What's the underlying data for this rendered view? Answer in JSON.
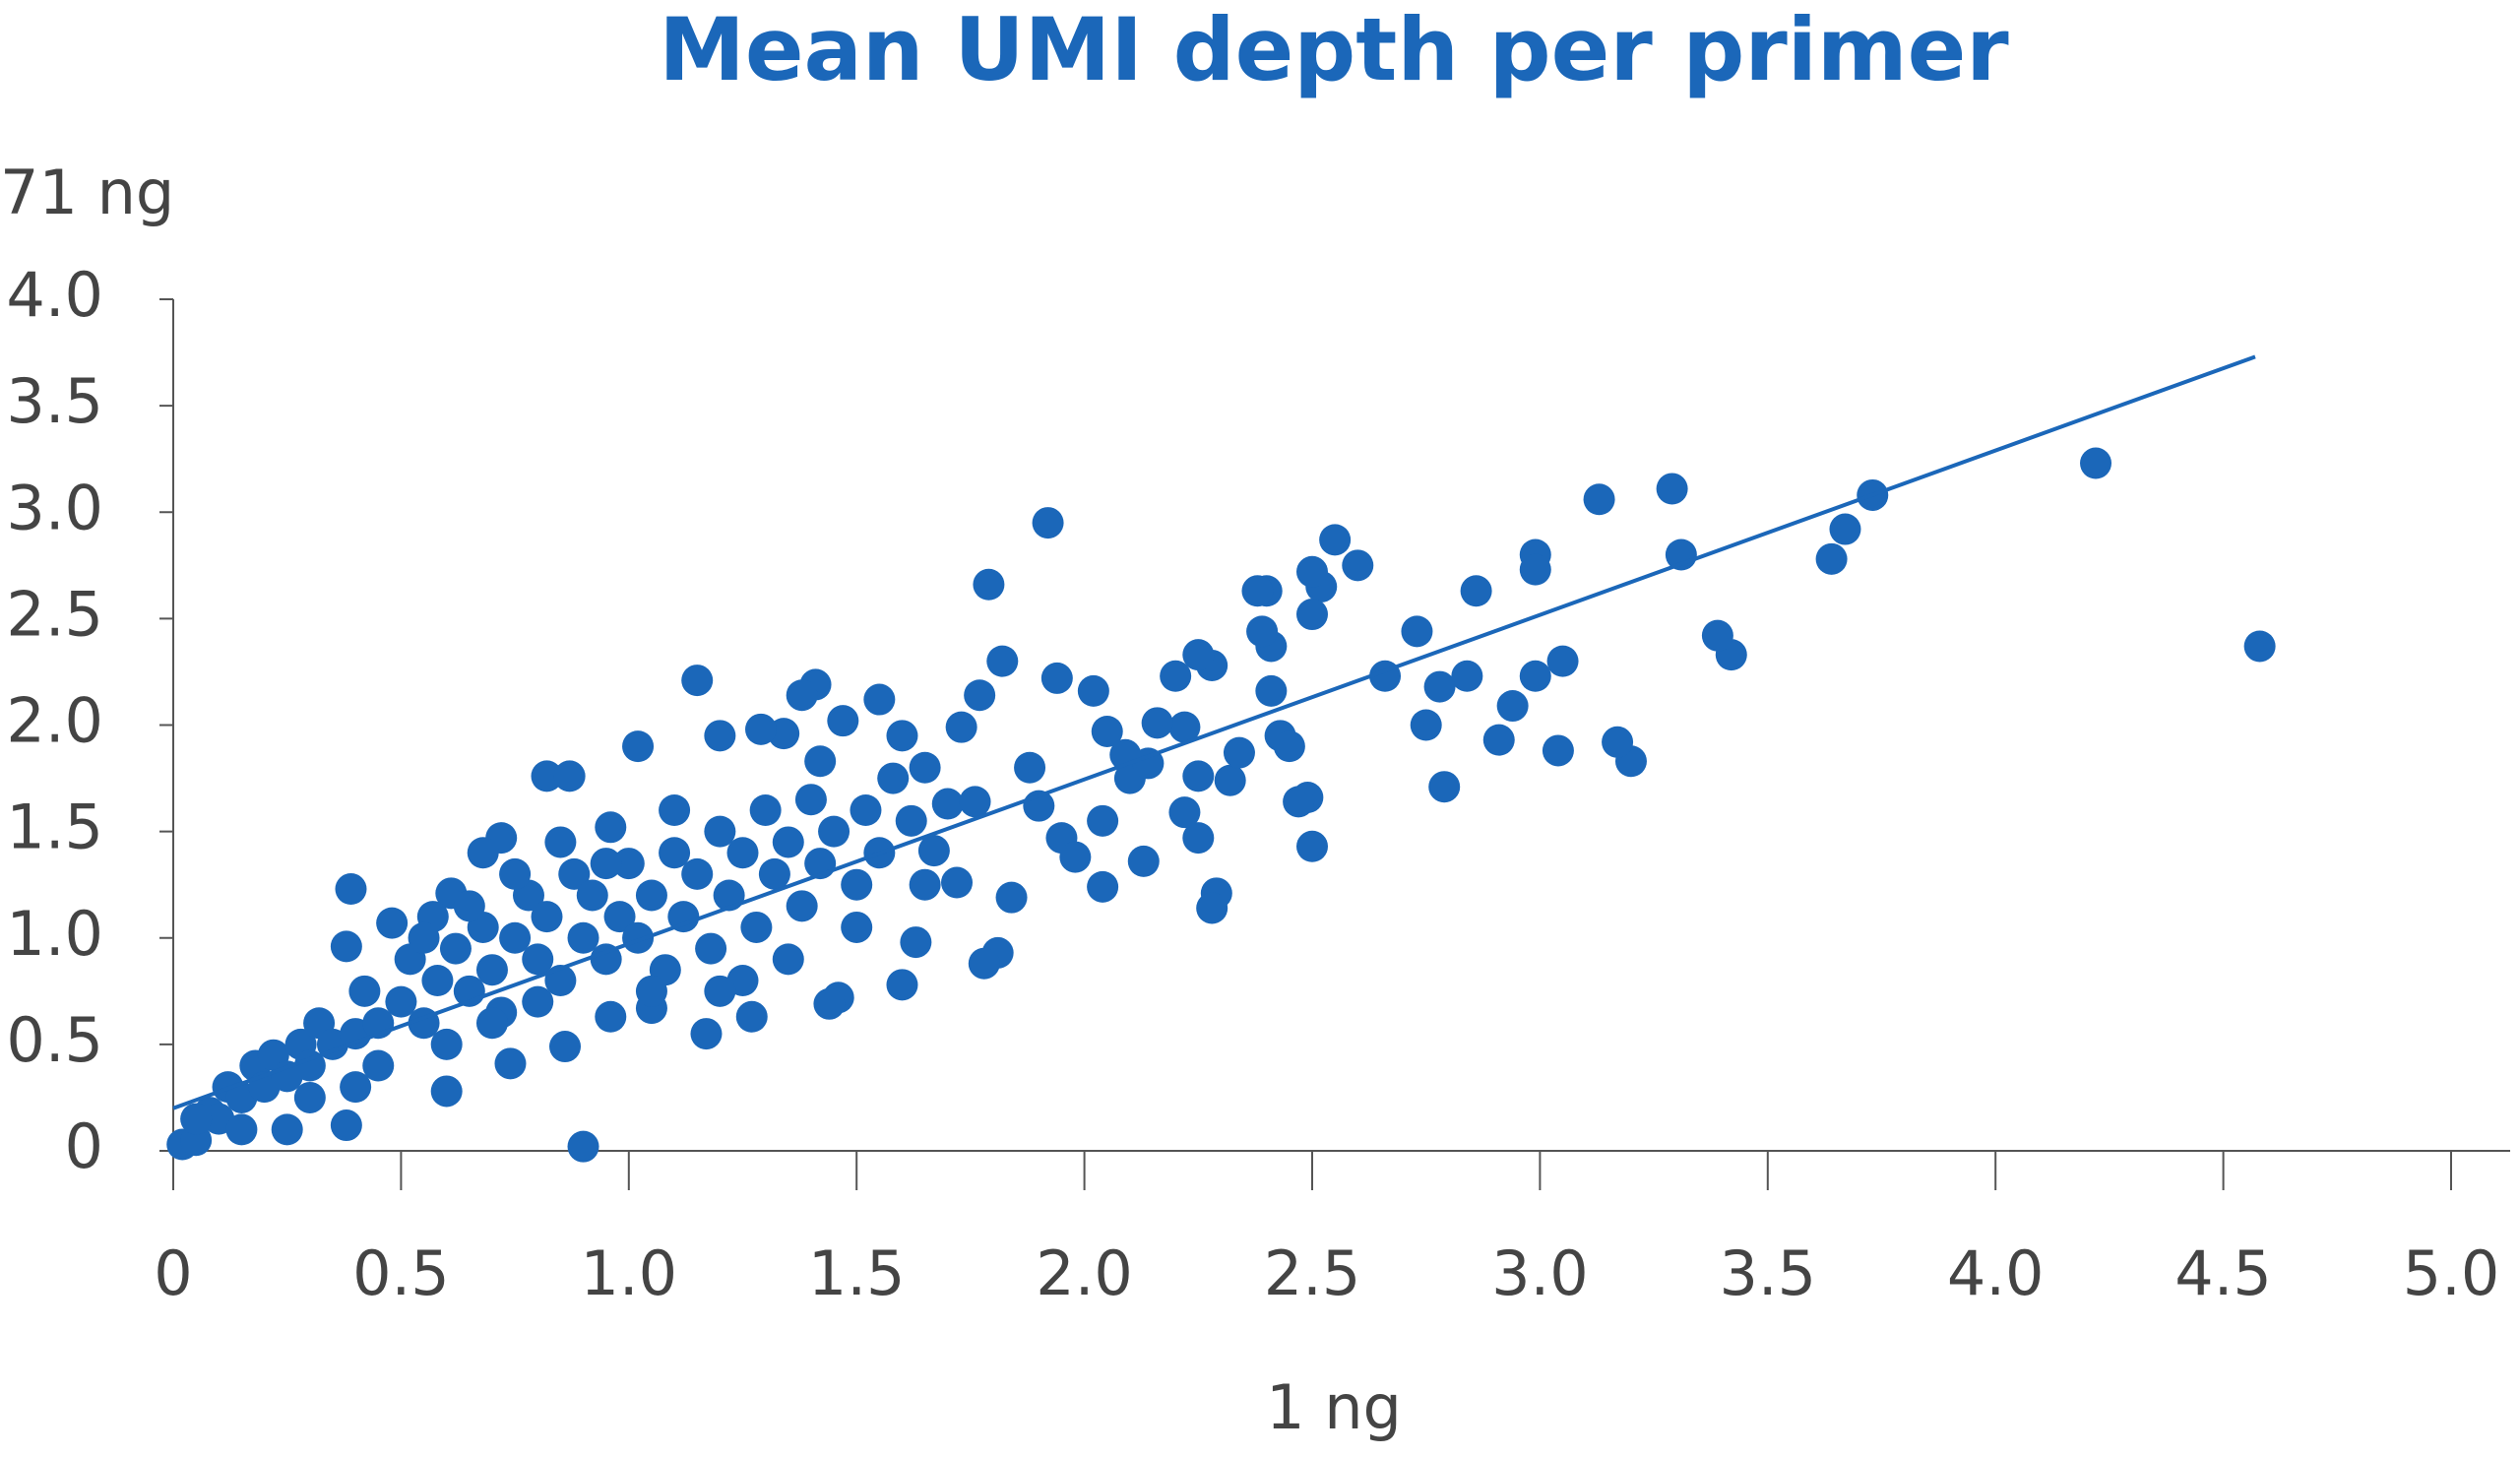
{
  "chart_data": {
    "type": "scatter",
    "title": "Mean UMI depth per primer",
    "x_label": "1 ng",
    "y_label": "71 ng",
    "color": "#1b67b9",
    "grid": false,
    "xlim": [
      0,
      5
    ],
    "xticks": [
      0,
      0.5,
      {
        "value": 1,
        "label": "1.0"
      },
      1.5,
      {
        "value": 2,
        "label": "2.0"
      },
      2.5,
      {
        "value": 3,
        "label": "3.0"
      },
      3.5,
      {
        "value": 4,
        "label": "4.0"
      },
      4.5,
      {
        "value": 5,
        "label": "5.0"
      }
    ],
    "ylim": [
      0,
      4
    ],
    "yticks": [
      0,
      0.5,
      {
        "value": 1,
        "label": "1.0"
      },
      1.5,
      {
        "value": 2,
        "label": "2.0"
      },
      2.5,
      {
        "value": 3,
        "label": "3.0"
      },
      3.5,
      {
        "value": 4,
        "label": "4.0"
      }
    ],
    "x": [
      4.58,
      4.22,
      3.73,
      3.67,
      3.64,
      3.42,
      3.39,
      3.31,
      3.29,
      3.13,
      3.2,
      3.17,
      3.04,
      3.05,
      2.99,
      2.99,
      2.99,
      2.94,
      2.91,
      2.86,
      2.84,
      2.79,
      2.78,
      2.75,
      2.73,
      2.66,
      2.6,
      2.55,
      2.52,
      2.5,
      2.5,
      2.5,
      2.49,
      2.47,
      2.43,
      2.45,
      2.41,
      2.41,
      2.4,
      2.38,
      2.39,
      2.32,
      2.34,
      2.29,
      2.28,
      2.28,
      2.25,
      2.25,
      2.25,
      2.22,
      2.22,
      2.2,
      2.13,
      2.09,
      2.05,
      2.04,
      2.04,
      2.02,
      1.92,
      1.94,
      1.82,
      1.84,
      1.81,
      1.78,
      1.79,
      1.77,
      1.73,
      1.65,
      1.6,
      1.63,
      1.55,
      1.46,
      1.44,
      1.34,
      1.41,
      1.27,
      1.17,
      1.15,
      1.02,
      0.9,
      0.86,
      0.39,
      0.38,
      0.38,
      0.25,
      0.6,
      0.74,
      0.96,
      1.05,
      0.82,
      0.87,
      0.72,
      0.61,
      0.68,
      0.48,
      0.57,
      0.96,
      1.2,
      1.29,
      1.38,
      1.42,
      1.47,
      1.6,
      1.7,
      1.76,
      1.88,
      1.9,
      1.95,
      1.98,
      2.1,
      2.16,
      2.14,
      1.67,
      1.72,
      0.02,
      0.05,
      0.08,
      0.1,
      0.12,
      0.15,
      0.18,
      0.2,
      0.22,
      0.25,
      0.28,
      0.3,
      0.32,
      0.35,
      0.4,
      0.42,
      0.45,
      0.5,
      0.52,
      0.55,
      0.58,
      0.62,
      0.65,
      0.68,
      0.7,
      0.72,
      0.75,
      0.78,
      0.8,
      0.82,
      0.85,
      0.88,
      0.9,
      0.92,
      0.95,
      0.98,
      1.0,
      1.02,
      1.05,
      1.08,
      1.1,
      1.12,
      1.15,
      1.18,
      1.2,
      1.22,
      1.25,
      1.28,
      1.3,
      1.32,
      1.35,
      1.38,
      1.4,
      1.42,
      1.45,
      1.5,
      1.52,
      1.55,
      1.58,
      1.62,
      1.65,
      1.5,
      1.35,
      1.25,
      0.3,
      0.45,
      0.6,
      0.7,
      0.55,
      0.65,
      0.75,
      0.85,
      0.95,
      1.1,
      1.05,
      0.8,
      1.2,
      0.4,
      0.15,
      0.05
    ],
    "values": [
      2.37,
      3.23,
      3.08,
      2.92,
      2.78,
      2.33,
      2.42,
      2.8,
      3.11,
      3.06,
      1.83,
      1.92,
      1.88,
      2.3,
      2.23,
      2.8,
      2.73,
      2.09,
      1.93,
      2.63,
      2.23,
      1.71,
      2.18,
      2.0,
      2.44,
      2.23,
      2.75,
      2.87,
      2.65,
      2.72,
      2.52,
      1.43,
      1.66,
      1.64,
      1.95,
      1.9,
      2.16,
      2.37,
      2.63,
      2.63,
      2.44,
      1.74,
      1.87,
      1.21,
      1.14,
      2.28,
      2.33,
      1.76,
      1.47,
      1.99,
      1.59,
      2.23,
      1.36,
      1.86,
      1.97,
      1.24,
      1.55,
      2.16,
      2.95,
      2.22,
      2.3,
      1.19,
      0.93,
      0.88,
      2.66,
      2.14,
      1.99,
      1.25,
      0.78,
      0.98,
      2.12,
      0.72,
      0.69,
      1.96,
      2.19,
      0.63,
      0.55,
      2.21,
      1.9,
      0.02,
      0.49,
      1.23,
      0.96,
      0.12,
      0.1,
      0.28,
      0.41,
      0.63,
      0.67,
      1.76,
      1.76,
      1.47,
      1.21,
      1.4,
      1.07,
      1.1,
      1.52,
      1.95,
      1.98,
      2.14,
      1.83,
      2.02,
      1.95,
      1.63,
      1.64,
      1.8,
      1.62,
      1.47,
      1.38,
      1.75,
      2.01,
      1.82,
      1.41,
      1.26,
      0.03,
      0.05,
      0.18,
      0.15,
      0.3,
      0.25,
      0.4,
      0.3,
      0.45,
      0.35,
      0.5,
      0.4,
      0.6,
      0.5,
      0.55,
      0.75,
      0.6,
      0.7,
      0.9,
      0.6,
      0.8,
      0.95,
      0.75,
      1.05,
      0.85,
      0.65,
      1.0,
      1.2,
      0.9,
      1.1,
      0.8,
      1.3,
      1.0,
      1.2,
      0.9,
      1.1,
      1.35,
      1.0,
      1.2,
      0.85,
      1.4,
      1.1,
      1.3,
      0.95,
      1.5,
      1.2,
      1.4,
      1.05,
      1.6,
      1.3,
      1.45,
      1.15,
      1.65,
      1.35,
      1.5,
      1.25,
      1.6,
      1.4,
      1.75,
      1.55,
      1.8,
      1.05,
      0.9,
      0.8,
      0.25,
      0.4,
      0.5,
      0.6,
      1.0,
      1.15,
      1.3,
      1.45,
      1.35,
      1.6,
      0.75,
      0.7,
      0.75,
      0.3,
      0.1,
      0.15
    ],
    "trendline": {
      "x": [
        0,
        4.57
      ],
      "y": [
        0.2,
        3.73
      ]
    }
  }
}
